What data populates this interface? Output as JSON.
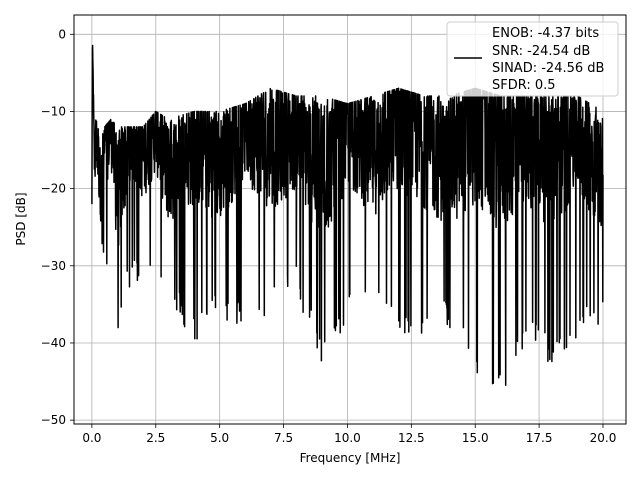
{
  "chart_data": {
    "type": "line",
    "title": "",
    "xlabel": "Frequency [MHz]",
    "ylabel": "PSD [dB]",
    "xlim": [
      -0.7,
      20.9
    ],
    "ylim": [
      -50.5,
      2.5
    ],
    "xticks": [
      0.0,
      2.5,
      5.0,
      7.5,
      10.0,
      12.5,
      15.0,
      17.5,
      20.0
    ],
    "xtick_labels": [
      "0.0",
      "2.5",
      "5.0",
      "7.5",
      "10.0",
      "12.5",
      "15.0",
      "17.5",
      "20.0"
    ],
    "yticks": [
      0,
      -10,
      -20,
      -30,
      -40,
      -50
    ],
    "ytick_labels": [
      "0",
      "−10",
      "−20",
      "−30",
      "−40",
      "−50"
    ],
    "grid": true,
    "legend_position": "top-right",
    "legend_entries": [
      "ENOB: -4.37 bits",
      "SNR: -24.54 dB",
      "SINAD: -24.56 dB",
      "SFDR: 0.5"
    ],
    "line_color": "#000000",
    "series": [
      {
        "x": [
          0.0,
          0.02,
          0.05,
          0.1,
          0.2,
          0.35,
          0.5,
          0.75,
          1.0,
          1.5,
          2.0,
          2.5,
          3.0,
          4.0,
          5.0,
          6.0,
          7.0,
          8.0,
          9.0,
          10.0,
          11.0,
          12.0,
          13.0,
          14.0,
          15.0,
          16.0,
          17.0,
          18.0,
          19.0,
          20.0
        ],
        "y": [
          -22,
          0,
          -6,
          -17,
          -14,
          -20,
          -15,
          -12,
          -21,
          -13,
          -16,
          -12,
          -18,
          -14,
          -17,
          -11,
          -15,
          -13,
          -18,
          -12,
          -16,
          -11,
          -14,
          -17,
          -12,
          -15,
          -13,
          -16,
          -12,
          -18
        ],
        "envelope_high": [
          -22,
          0,
          -6,
          -8,
          -12,
          -12,
          -12,
          -11,
          -12,
          -12,
          -12,
          -10,
          -11,
          -10,
          -10,
          -9,
          -7,
          -8,
          -8,
          -9,
          -8,
          -7,
          -8,
          -8,
          -7,
          -8,
          -8,
          -8,
          -8,
          -10
        ],
        "envelope_low": [
          -22,
          -2,
          -8,
          -22,
          -30,
          -28,
          -32,
          -29,
          -40,
          -33,
          -32,
          -31,
          -35,
          -40,
          -37,
          -38,
          -36,
          -34,
          -43,
          -37,
          -36,
          -40,
          -39,
          -38,
          -45,
          -47,
          -40,
          -43,
          -40,
          -37
        ]
      }
    ]
  }
}
